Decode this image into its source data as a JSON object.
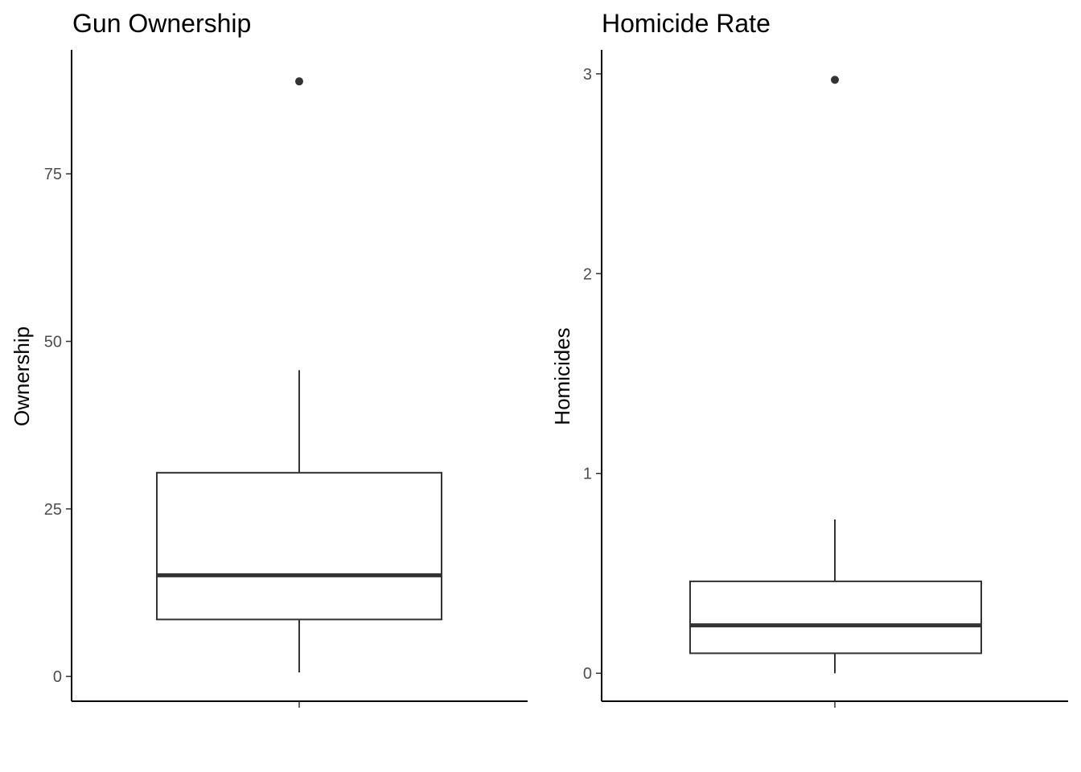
{
  "chart_data": [
    {
      "type": "box",
      "title": "Gun Ownership",
      "xlabel": "",
      "ylabel": "Ownership",
      "ylim": [
        -3.7,
        93.5
      ],
      "yticks": [
        0,
        25,
        50,
        75
      ],
      "ytick_labels": [
        "0",
        "25",
        "50",
        "75"
      ],
      "grid": false,
      "legend": "none",
      "box": {
        "whisker_low": 0.6,
        "q1": 8.5,
        "median": 15.1,
        "q3": 30.4,
        "whisker_high": 45.7,
        "outliers": [
          88.8
        ]
      }
    },
    {
      "type": "box",
      "title": "Homicide Rate",
      "xlabel": "",
      "ylabel": "Homicides",
      "ylim": [
        -0.14,
        3.12
      ],
      "yticks": [
        0,
        1,
        2,
        3
      ],
      "ytick_labels": [
        "0",
        "1",
        "2",
        "3"
      ],
      "grid": false,
      "legend": "none",
      "box": {
        "whisker_low": 0.0,
        "q1": 0.1,
        "median": 0.24,
        "q3": 0.46,
        "whisker_high": 0.77,
        "outliers": [
          2.97
        ]
      }
    }
  ],
  "colors": {
    "box_stroke": "#333333",
    "axis": "#000000",
    "tick_text": "#4d4d4d",
    "background": "#ffffff"
  }
}
